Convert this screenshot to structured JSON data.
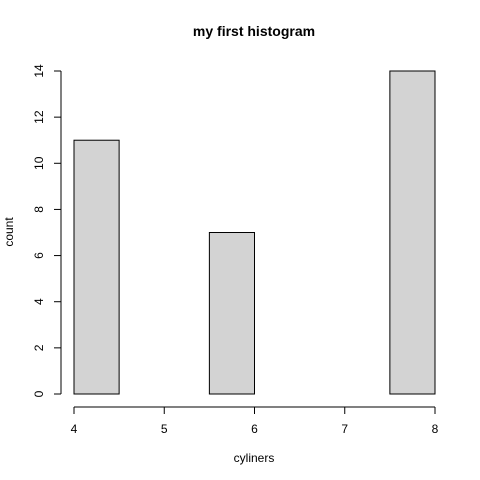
{
  "chart_data": {
    "type": "bar",
    "title": "my first histogram",
    "xlabel": "cyliners",
    "ylabel": "count",
    "bins": [
      {
        "start": 4.0,
        "end": 4.5,
        "count": 11
      },
      {
        "start": 4.5,
        "end": 5.0,
        "count": 0
      },
      {
        "start": 5.0,
        "end": 5.5,
        "count": 0
      },
      {
        "start": 5.5,
        "end": 6.0,
        "count": 7
      },
      {
        "start": 6.0,
        "end": 6.5,
        "count": 0
      },
      {
        "start": 6.5,
        "end": 7.0,
        "count": 0
      },
      {
        "start": 7.0,
        "end": 7.5,
        "count": 0
      },
      {
        "start": 7.5,
        "end": 8.0,
        "count": 14
      }
    ],
    "xlim": [
      4,
      8
    ],
    "ylim": [
      0,
      14
    ],
    "xticks": [
      "4",
      "5",
      "6",
      "7",
      "8"
    ],
    "yticks": [
      "0",
      "2",
      "4",
      "6",
      "8",
      "10",
      "12",
      "14"
    ],
    "bar_fill": "#d3d3d3",
    "bar_stroke": "#000000",
    "grid": false,
    "legend": "none"
  }
}
